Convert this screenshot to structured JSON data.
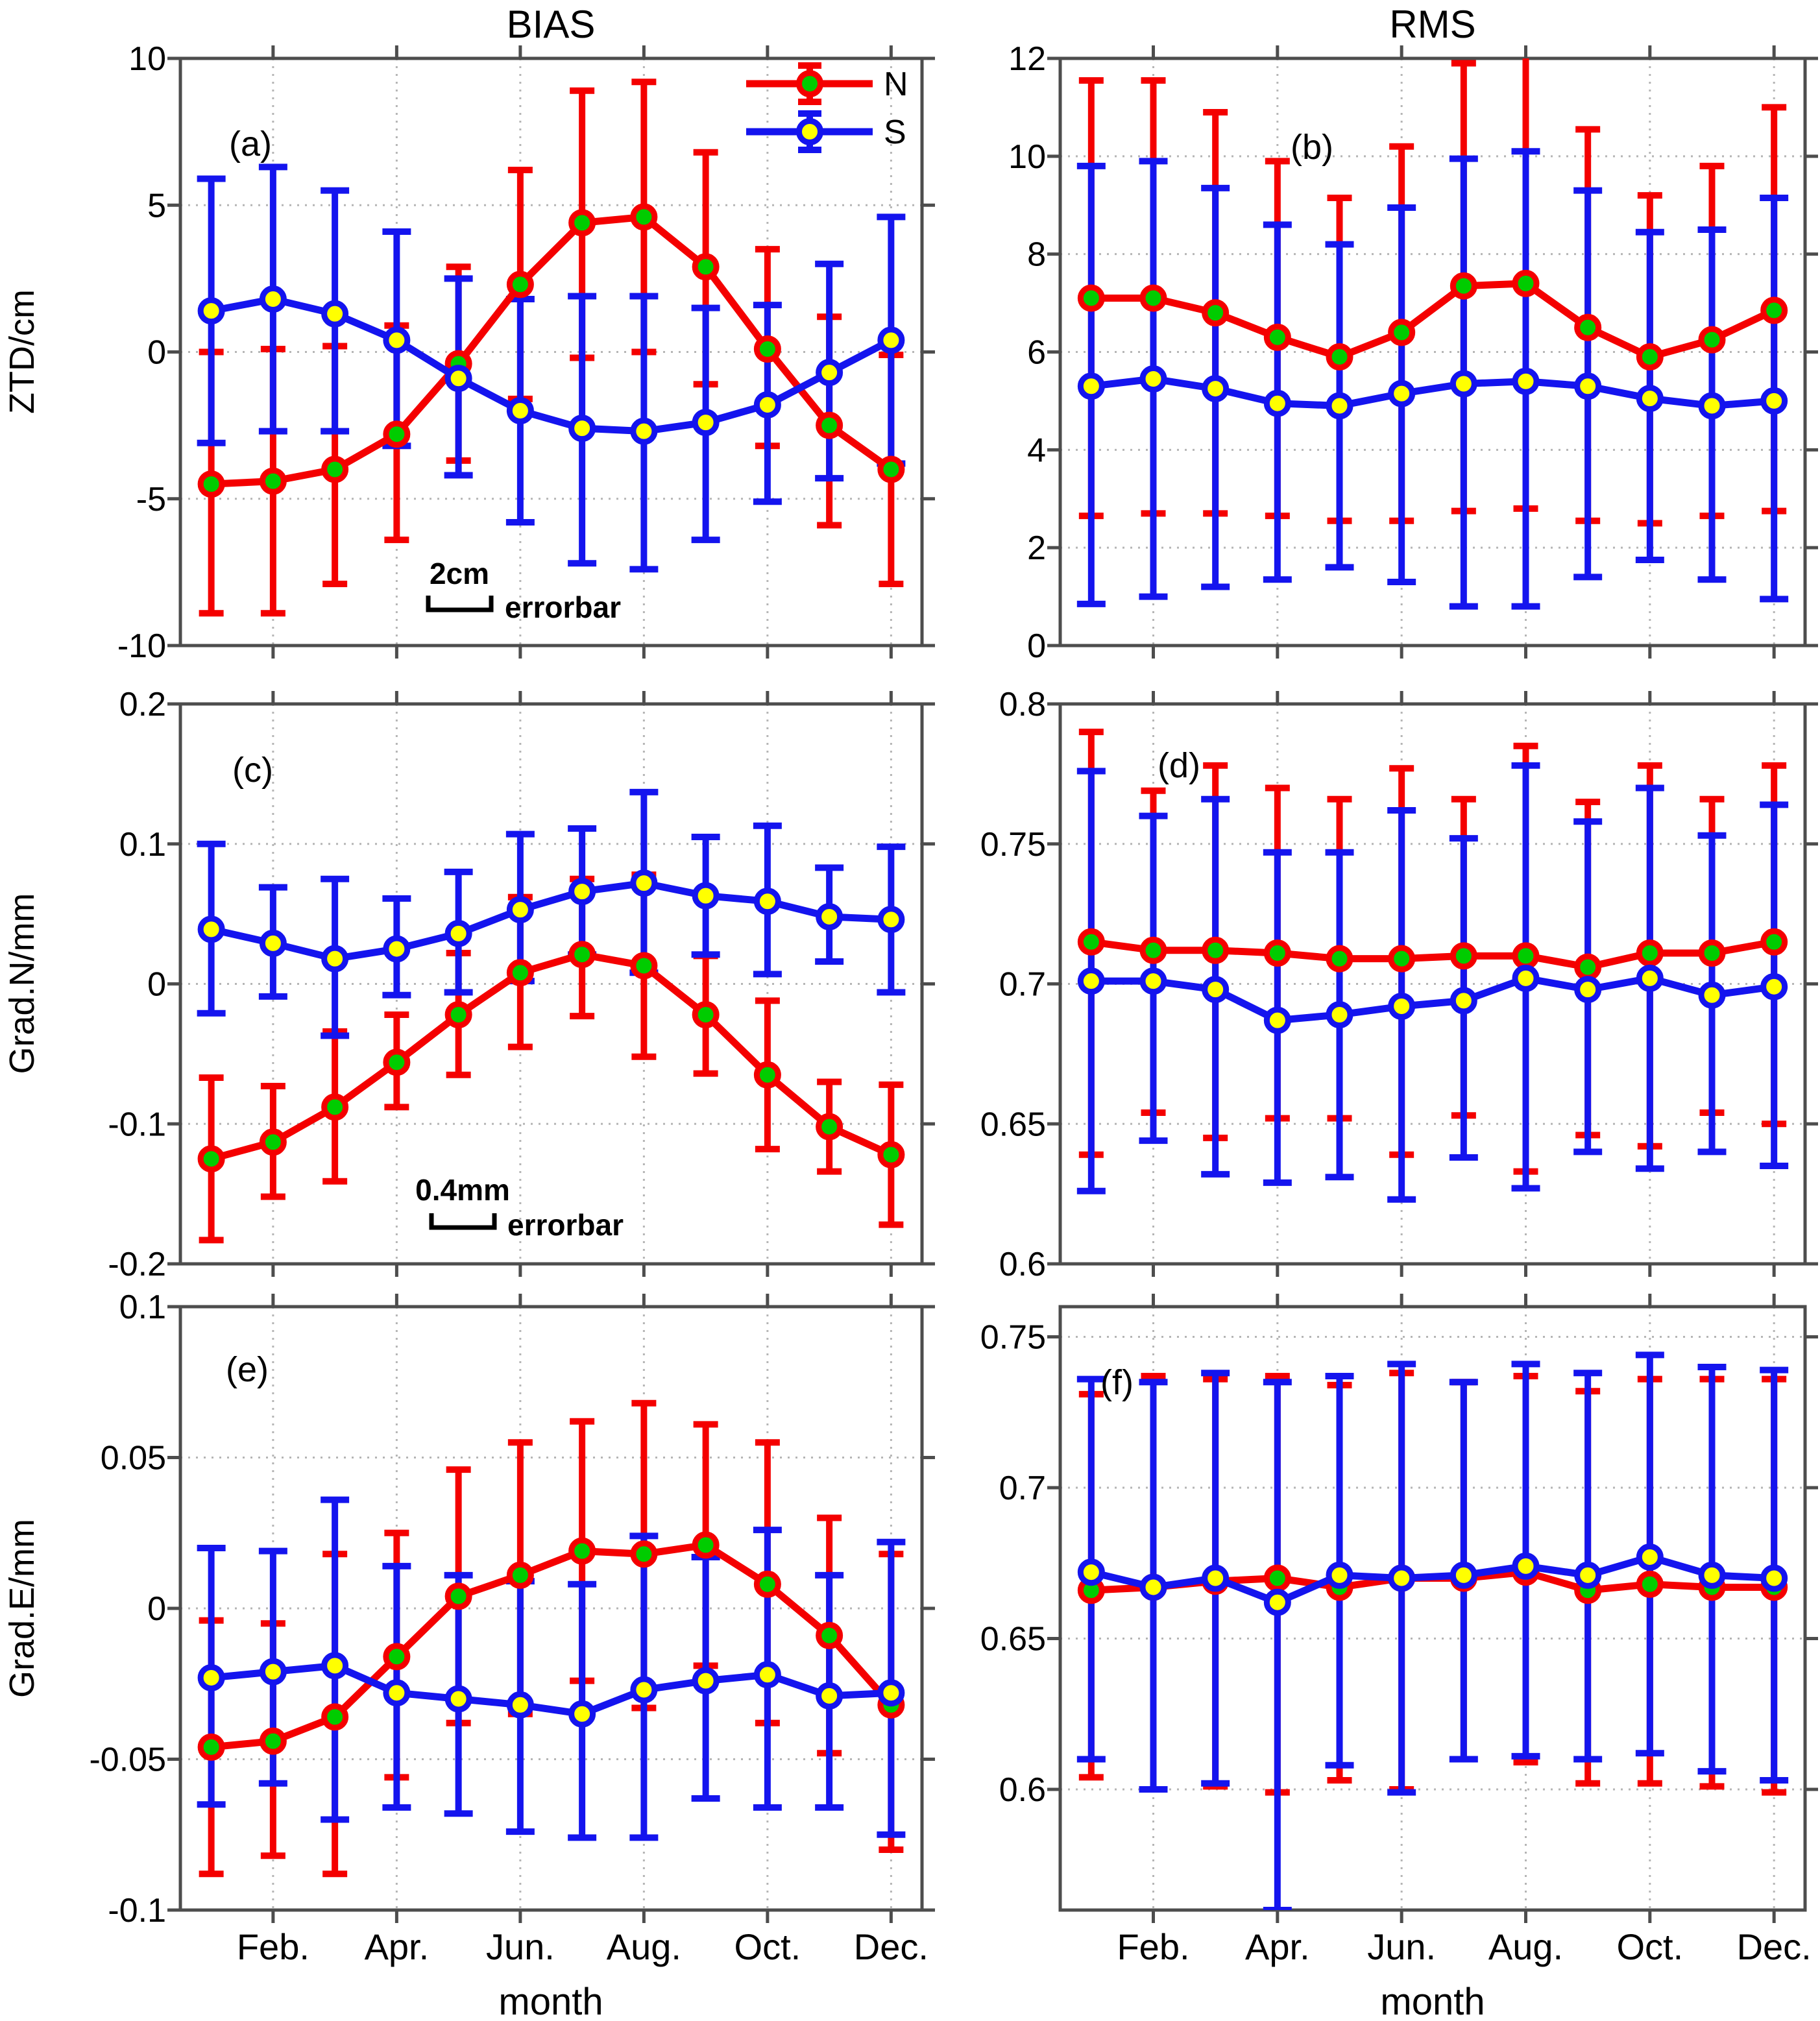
{
  "figure": {
    "titles": {
      "left": "BIAS",
      "right": "RMS"
    },
    "xlabel": "month",
    "x_ticklabels": [
      "Feb.",
      "Apr.",
      "Jun.",
      "Aug.",
      "Oct.",
      "Dec."
    ],
    "legend": {
      "entries": [
        "N",
        "S"
      ]
    },
    "colors": {
      "n_line": "#f40000",
      "n_marker_fill": "#00cc00",
      "s_line": "#1414ee",
      "s_marker_fill": "#ffff00",
      "axis": "#4d4d4d",
      "grid": "#b5b5b5",
      "text": "#000000"
    }
  },
  "chart_data": [
    {
      "type": "line",
      "id": "a",
      "panel_label": "(a)",
      "column_title": "BIAS",
      "ylabel": "ZTD/cm",
      "ylim": [
        -10,
        10
      ],
      "yticks": [
        -10,
        -5,
        0,
        5,
        10
      ],
      "ytick_labels": [
        "-10",
        "-5",
        "0",
        "5",
        "10"
      ],
      "x": [
        1,
        2,
        3,
        4,
        5,
        6,
        7,
        8,
        9,
        10,
        11,
        12
      ],
      "annotation": {
        "scale_label": "2cm",
        "text": "errorbar"
      },
      "series": [
        {
          "name": "N",
          "values": [
            -4.5,
            -4.4,
            -4.0,
            -2.8,
            -0.4,
            2.3,
            4.4,
            4.6,
            2.9,
            0.1,
            -2.5,
            -4.0
          ],
          "err_lo": [
            -8.9,
            -8.9,
            -7.9,
            -6.4,
            -3.7,
            -1.6,
            -0.2,
            0.0,
            -1.1,
            -3.2,
            -5.9,
            -7.9
          ],
          "err_hi": [
            0.0,
            0.1,
            0.2,
            0.9,
            2.9,
            6.2,
            8.9,
            9.2,
            6.8,
            3.5,
            1.2,
            -0.1
          ]
        },
        {
          "name": "S",
          "values": [
            1.4,
            1.8,
            1.3,
            0.4,
            -0.9,
            -2.0,
            -2.6,
            -2.7,
            -2.4,
            -1.8,
            -0.7,
            0.4
          ],
          "err_lo": [
            -3.1,
            -2.7,
            -2.7,
            -3.2,
            -4.2,
            -5.8,
            -7.2,
            -7.4,
            -6.4,
            -5.1,
            -4.3,
            -3.8
          ],
          "err_hi": [
            5.9,
            6.3,
            5.5,
            4.1,
            2.5,
            1.8,
            1.9,
            1.9,
            1.5,
            1.6,
            3.0,
            4.6
          ]
        }
      ]
    },
    {
      "type": "line",
      "id": "b",
      "panel_label": "(b)",
      "column_title": "RMS",
      "ylabel": "",
      "ylim": [
        0,
        12
      ],
      "yticks": [
        0,
        2,
        4,
        6,
        8,
        10,
        12
      ],
      "ytick_labels": [
        "0",
        "2",
        "4",
        "6",
        "8",
        "10",
        "12"
      ],
      "x": [
        1,
        2,
        3,
        4,
        5,
        6,
        7,
        8,
        9,
        10,
        11,
        12
      ],
      "series": [
        {
          "name": "N",
          "values": [
            7.1,
            7.1,
            6.8,
            6.3,
            5.9,
            6.4,
            7.35,
            7.4,
            6.5,
            5.9,
            6.25,
            6.85
          ],
          "err_lo": [
            2.65,
            2.7,
            2.7,
            2.65,
            2.55,
            2.55,
            2.75,
            2.8,
            2.55,
            2.5,
            2.65,
            2.75
          ],
          "err_hi": [
            11.55,
            11.55,
            10.9,
            9.9,
            9.15,
            10.2,
            11.9,
            12.1,
            10.55,
            9.2,
            9.8,
            11.0
          ]
        },
        {
          "name": "S",
          "values": [
            5.3,
            5.45,
            5.25,
            4.95,
            4.9,
            5.15,
            5.35,
            5.4,
            5.3,
            5.05,
            4.9,
            5.0
          ],
          "err_lo": [
            0.85,
            1.0,
            1.2,
            1.35,
            1.6,
            1.3,
            0.8,
            0.8,
            1.4,
            1.75,
            1.35,
            0.95
          ],
          "err_hi": [
            9.8,
            9.9,
            9.35,
            8.6,
            8.2,
            8.95,
            9.95,
            10.1,
            9.3,
            8.45,
            8.5,
            9.15
          ]
        }
      ]
    },
    {
      "type": "line",
      "id": "c",
      "panel_label": "(c)",
      "column_title": "BIAS",
      "ylabel": "Grad.N/mm",
      "ylim": [
        -0.2,
        0.2
      ],
      "yticks": [
        -0.2,
        -0.1,
        0,
        0.1,
        0.2
      ],
      "ytick_labels": [
        "-0.2",
        "-0.1",
        "0",
        "0.1",
        "0.2"
      ],
      "x": [
        1,
        2,
        3,
        4,
        5,
        6,
        7,
        8,
        9,
        10,
        11,
        12
      ],
      "annotation": {
        "scale_label": "0.4mm",
        "text": "errorbar"
      },
      "series": [
        {
          "name": "N",
          "values": [
            -0.125,
            -0.113,
            -0.088,
            -0.056,
            -0.022,
            0.008,
            0.021,
            0.013,
            -0.022,
            -0.065,
            -0.102,
            -0.122
          ],
          "err_lo": [
            -0.183,
            -0.152,
            -0.141,
            -0.088,
            -0.065,
            -0.045,
            -0.023,
            -0.052,
            -0.064,
            -0.118,
            -0.134,
            -0.172
          ],
          "err_hi": [
            -0.067,
            -0.073,
            -0.034,
            -0.022,
            0.022,
            0.062,
            0.075,
            0.078,
            0.02,
            -0.012,
            -0.07,
            -0.072
          ]
        },
        {
          "name": "S",
          "values": [
            0.039,
            0.029,
            0.018,
            0.025,
            0.036,
            0.053,
            0.066,
            0.072,
            0.063,
            0.059,
            0.048,
            0.046
          ],
          "err_lo": [
            -0.021,
            -0.009,
            -0.037,
            -0.008,
            -0.006,
            0.002,
            0.021,
            0.008,
            0.021,
            0.007,
            0.016,
            -0.006
          ],
          "err_hi": [
            0.1,
            0.069,
            0.075,
            0.061,
            0.08,
            0.107,
            0.111,
            0.137,
            0.105,
            0.113,
            0.083,
            0.098
          ]
        }
      ]
    },
    {
      "type": "line",
      "id": "d",
      "panel_label": "(d)",
      "column_title": "RMS",
      "ylabel": "",
      "ylim": [
        0.6,
        0.8
      ],
      "yticks": [
        0.6,
        0.65,
        0.7,
        0.75,
        0.8
      ],
      "ytick_labels": [
        "0.6",
        "0.65",
        "0.7",
        "0.75",
        "0.8"
      ],
      "x": [
        1,
        2,
        3,
        4,
        5,
        6,
        7,
        8,
        9,
        10,
        11,
        12
      ],
      "series": [
        {
          "name": "N",
          "values": [
            0.715,
            0.712,
            0.712,
            0.711,
            0.709,
            0.709,
            0.71,
            0.71,
            0.706,
            0.711,
            0.711,
            0.715
          ],
          "err_lo": [
            0.639,
            0.654,
            0.645,
            0.652,
            0.652,
            0.639,
            0.653,
            0.633,
            0.646,
            0.642,
            0.654,
            0.65
          ],
          "err_hi": [
            0.79,
            0.769,
            0.778,
            0.77,
            0.766,
            0.777,
            0.766,
            0.785,
            0.765,
            0.778,
            0.766,
            0.778
          ]
        },
        {
          "name": "S",
          "values": [
            0.701,
            0.701,
            0.698,
            0.687,
            0.689,
            0.692,
            0.694,
            0.702,
            0.698,
            0.702,
            0.696,
            0.699
          ],
          "err_lo": [
            0.626,
            0.644,
            0.632,
            0.629,
            0.631,
            0.623,
            0.638,
            0.627,
            0.64,
            0.634,
            0.64,
            0.635
          ],
          "err_hi": [
            0.776,
            0.76,
            0.766,
            0.747,
            0.747,
            0.762,
            0.752,
            0.778,
            0.758,
            0.77,
            0.753,
            0.764
          ]
        }
      ]
    },
    {
      "type": "line",
      "id": "e",
      "panel_label": "(e)",
      "column_title": "BIAS",
      "ylabel": "Grad.E/mm",
      "ylim": [
        -0.1,
        0.1
      ],
      "yticks": [
        -0.1,
        -0.05,
        0,
        0.05,
        0.1
      ],
      "ytick_labels": [
        "-0.1",
        "-0.05",
        "0",
        "0.05",
        "0.1"
      ],
      "x": [
        1,
        2,
        3,
        4,
        5,
        6,
        7,
        8,
        9,
        10,
        11,
        12
      ],
      "series": [
        {
          "name": "N",
          "values": [
            -0.046,
            -0.044,
            -0.036,
            -0.016,
            0.004,
            0.011,
            0.019,
            0.018,
            0.021,
            0.008,
            -0.009,
            -0.032
          ],
          "err_lo": [
            -0.088,
            -0.082,
            -0.088,
            -0.056,
            -0.038,
            -0.035,
            -0.024,
            -0.033,
            -0.019,
            -0.038,
            -0.048,
            -0.08
          ],
          "err_hi": [
            -0.004,
            -0.005,
            0.018,
            0.025,
            0.046,
            0.055,
            0.062,
            0.068,
            0.061,
            0.055,
            0.03,
            0.018
          ]
        },
        {
          "name": "S",
          "values": [
            -0.023,
            -0.021,
            -0.019,
            -0.028,
            -0.03,
            -0.032,
            -0.035,
            -0.027,
            -0.024,
            -0.022,
            -0.029,
            -0.028
          ],
          "err_lo": [
            -0.065,
            -0.058,
            -0.07,
            -0.066,
            -0.068,
            -0.074,
            -0.076,
            -0.076,
            -0.063,
            -0.066,
            -0.066,
            -0.075
          ],
          "err_hi": [
            0.02,
            0.019,
            0.036,
            0.014,
            0.011,
            0.009,
            0.008,
            0.024,
            0.017,
            0.026,
            0.011,
            0.022
          ]
        }
      ]
    },
    {
      "type": "line",
      "id": "f",
      "panel_label": "(f)",
      "column_title": "RMS",
      "ylabel": "",
      "ylim": [
        0.56,
        0.76
      ],
      "yticks": [
        0.6,
        0.65,
        0.7,
        0.75
      ],
      "ytick_labels": [
        "0.6",
        "0.65",
        "0.7",
        "0.75"
      ],
      "x": [
        1,
        2,
        3,
        4,
        5,
        6,
        7,
        8,
        9,
        10,
        11,
        12
      ],
      "series": [
        {
          "name": "N",
          "values": [
            0.666,
            0.667,
            0.669,
            0.67,
            0.667,
            0.67,
            0.67,
            0.672,
            0.666,
            0.668,
            0.667,
            0.667
          ],
          "err_lo": [
            0.604,
            0.6,
            0.601,
            0.599,
            0.603,
            0.6,
            0.61,
            0.609,
            0.602,
            0.602,
            0.601,
            0.599
          ],
          "err_hi": [
            0.731,
            0.737,
            0.736,
            0.737,
            0.734,
            0.738,
            0.735,
            0.737,
            0.732,
            0.736,
            0.736,
            0.736
          ]
        },
        {
          "name": "S",
          "values": [
            0.672,
            0.667,
            0.67,
            0.662,
            0.671,
            0.67,
            0.671,
            0.674,
            0.671,
            0.677,
            0.671,
            0.67
          ],
          "err_lo": [
            0.61,
            0.6,
            0.602,
            0.56,
            0.608,
            0.599,
            0.61,
            0.611,
            0.61,
            0.612,
            0.606,
            0.603
          ],
          "err_hi": [
            0.736,
            0.735,
            0.738,
            0.735,
            0.737,
            0.741,
            0.735,
            0.741,
            0.738,
            0.744,
            0.74,
            0.739
          ]
        }
      ]
    }
  ]
}
